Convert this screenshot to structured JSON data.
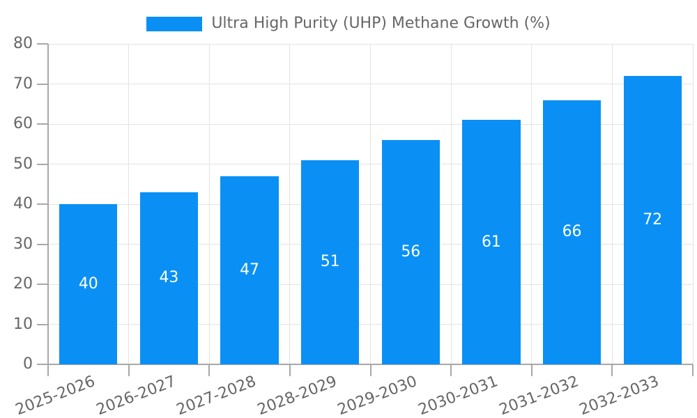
{
  "legend": {
    "label": "Ultra High Purity (UHP) Methane Growth (%)"
  },
  "chart_data": {
    "type": "bar",
    "title": "",
    "series_name": "Ultra High Purity (UHP) Methane Growth (%)",
    "categories": [
      "2025-2026",
      "2026-2027",
      "2027-2028",
      "2028-2029",
      "2029-2030",
      "2030-2031",
      "2031-2032",
      "2032-2033"
    ],
    "values": [
      40,
      43,
      47,
      51,
      56,
      61,
      66,
      72
    ],
    "bar_labels": [
      "40",
      "43",
      "47",
      "51",
      "56",
      "61",
      "66",
      "72"
    ],
    "xlabel": "",
    "ylabel": "",
    "ylim": [
      0,
      80
    ],
    "yticks": [
      0,
      10,
      20,
      30,
      40,
      50,
      60,
      70,
      80
    ],
    "grid": "horizontal and vertical gridlines on",
    "legend_position": "top-center",
    "x_label_rotation_deg": -21,
    "colors": {
      "bar": "#0a90f4",
      "grid": "#e3e3e3",
      "axis": "#a8a8a8",
      "tick_label": "#666666",
      "legend_text": "#666666",
      "bar_value_text": "#ffffff",
      "background": "#ffffff"
    }
  }
}
